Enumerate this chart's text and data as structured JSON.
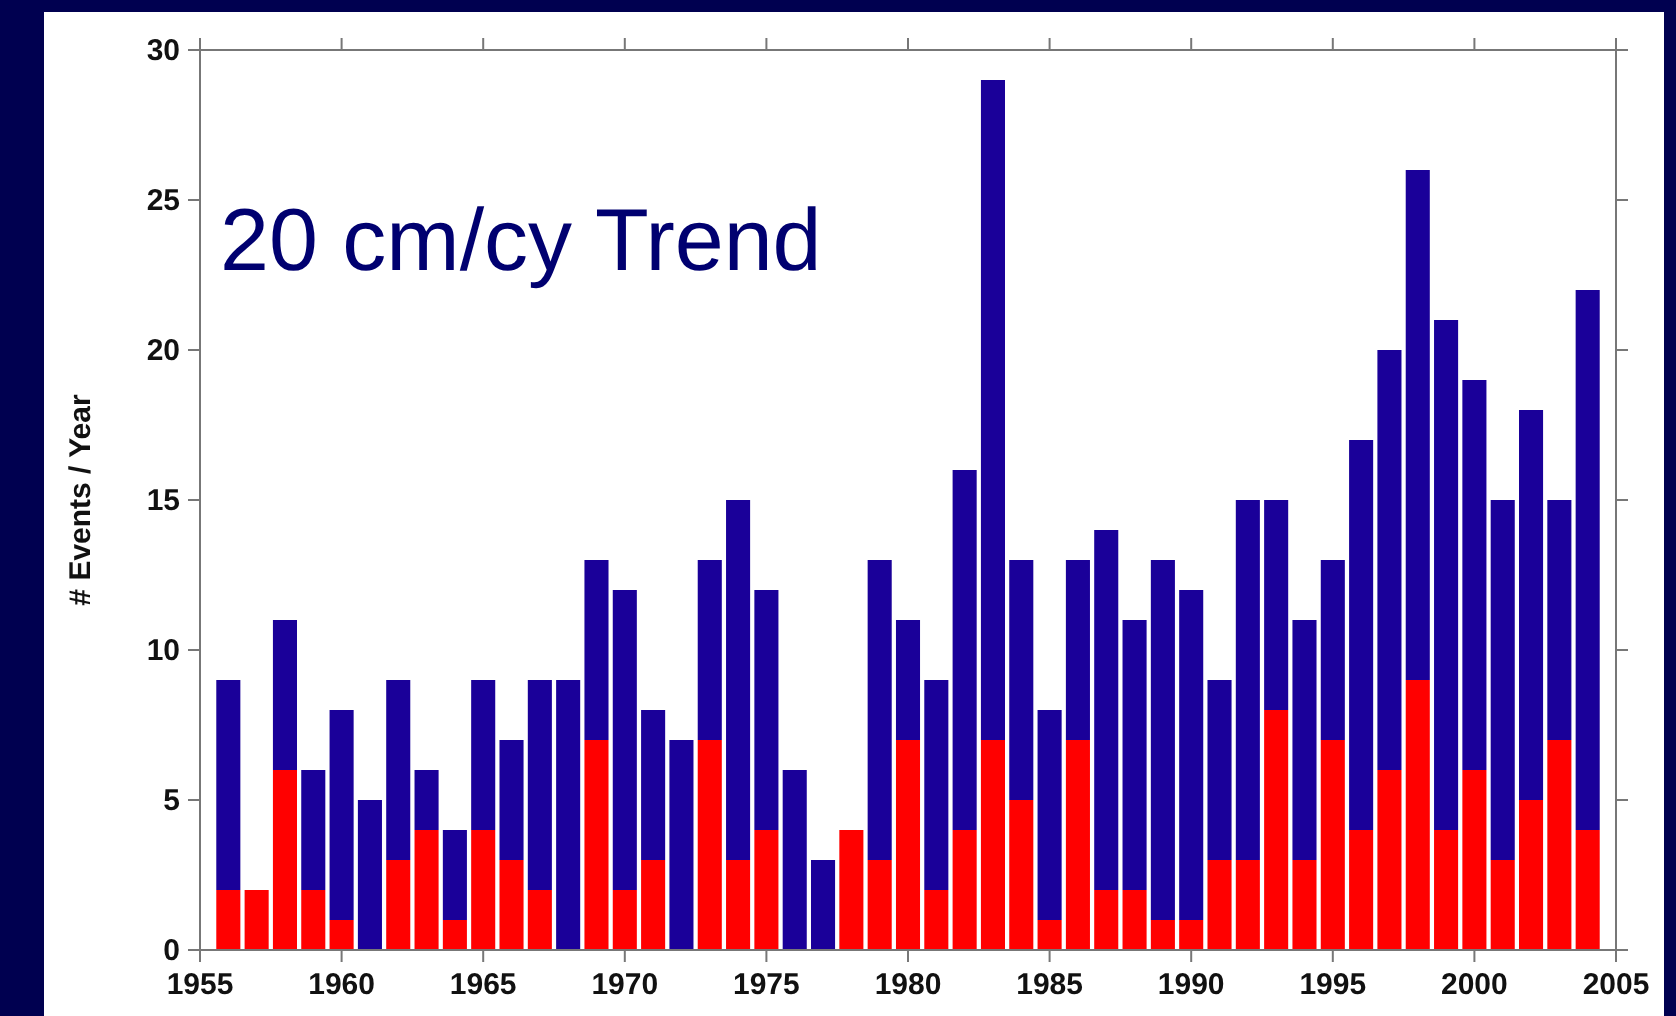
{
  "chart_data": {
    "type": "bar",
    "stacked": true,
    "ylabel": "# Events  /  Year",
    "annotations": [
      "20 cm/cy Trend"
    ],
    "x": [
      1956,
      1957,
      1958,
      1959,
      1960,
      1961,
      1962,
      1963,
      1964,
      1965,
      1966,
      1967,
      1968,
      1969,
      1970,
      1971,
      1972,
      1973,
      1974,
      1975,
      1976,
      1977,
      1978,
      1979,
      1980,
      1981,
      1982,
      1983,
      1984,
      1985,
      1986,
      1987,
      1988,
      1989,
      1990,
      1991,
      1992,
      1993,
      1994,
      1995,
      1996,
      1997,
      1998,
      1999,
      2000,
      2001,
      2002,
      2003,
      2004
    ],
    "series": [
      {
        "color": "#ff0000",
        "values": [
          2,
          2,
          6,
          2,
          1,
          0,
          3,
          4,
          1,
          4,
          3,
          2,
          0,
          7,
          2,
          3,
          0,
          7,
          3,
          4,
          0,
          0,
          4,
          3,
          7,
          2,
          4,
          7,
          5,
          1,
          7,
          2,
          2,
          1,
          1,
          3,
          3,
          8,
          3,
          7,
          4,
          6,
          9,
          4,
          6,
          3,
          5,
          7,
          4
        ]
      },
      {
        "color": "#1a0099",
        "values": [
          7,
          0,
          5,
          4,
          7,
          5,
          6,
          2,
          3,
          5,
          4,
          7,
          9,
          6,
          10,
          5,
          7,
          6,
          12,
          8,
          6,
          3,
          0,
          10,
          4,
          7,
          12,
          22,
          8,
          7,
          6,
          12,
          9,
          12,
          11,
          6,
          12,
          7,
          8,
          6,
          13,
          14,
          17,
          17,
          13,
          12,
          13,
          8,
          18
        ]
      }
    ],
    "xlim": [
      1955,
      2005
    ],
    "xticks": [
      1955,
      1960,
      1965,
      1970,
      1975,
      1980,
      1985,
      1990,
      1995,
      2000,
      2005
    ],
    "ylim": [
      0,
      30
    ],
    "yticks": [
      0,
      5,
      10,
      15,
      20,
      25,
      30
    ],
    "grid": false
  }
}
